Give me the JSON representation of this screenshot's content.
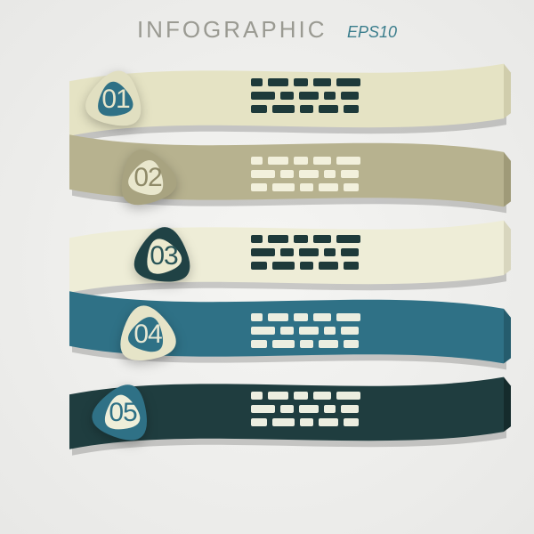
{
  "header": {
    "title": "INFOGRAPHIC",
    "title_color": "#9a9a92",
    "subtitle": "EPS10",
    "subtitle_color": "#3a7d8c"
  },
  "layout": {
    "type": "infographic",
    "ribbon_count": 5,
    "ribbon_height": 96,
    "ribbon_overlap": 8,
    "badge_size": 110
  },
  "ribbons": [
    {
      "id": "01",
      "fill": "#e5e3c4",
      "shade": "#d0cdac",
      "text_color": "#1e3a3a",
      "badge_outer": "#e1dfc1",
      "badge_inner": "#2f7186",
      "num_color": "#e8e6cb",
      "rotate_outer": 12,
      "rotate_inner": -8
    },
    {
      "id": "02",
      "fill": "#b7b28f",
      "shade": "#9f9a78",
      "text_color": "#f2f0dc",
      "badge_outer": "#a8a380",
      "badge_inner": "#e9e7cd",
      "num_color": "#8f8a68",
      "rotate_outer": -18,
      "rotate_inner": 14
    },
    {
      "id": "03",
      "fill": "#eeedd7",
      "shade": "#d8d6be",
      "text_color": "#1e3a3a",
      "badge_outer": "#204245",
      "badge_inner": "#eceacf",
      "num_color": "#2a5558",
      "rotate_outer": 6,
      "rotate_inner": -20
    },
    {
      "id": "04",
      "fill": "#2f7186",
      "shade": "#255c6d",
      "text_color": "#eceee0",
      "badge_outer": "#e6e4c8",
      "badge_inner": "#2f7186",
      "num_color": "#e8e8d4",
      "rotate_outer": -10,
      "rotate_inner": 16
    },
    {
      "id": "05",
      "fill": "#1f3d3f",
      "shade": "#152b2c",
      "text_color": "#eceee0",
      "badge_outer": "#2f7186",
      "badge_inner": "#eeeed9",
      "num_color": "#2f7186",
      "rotate_outer": 20,
      "rotate_inner": -6
    }
  ],
  "placeholder_pattern": {
    "rows": [
      [
        28,
        52,
        36,
        44,
        60
      ],
      [
        60,
        34,
        48,
        30,
        44
      ],
      [
        40,
        56,
        32,
        50,
        38
      ]
    ]
  }
}
